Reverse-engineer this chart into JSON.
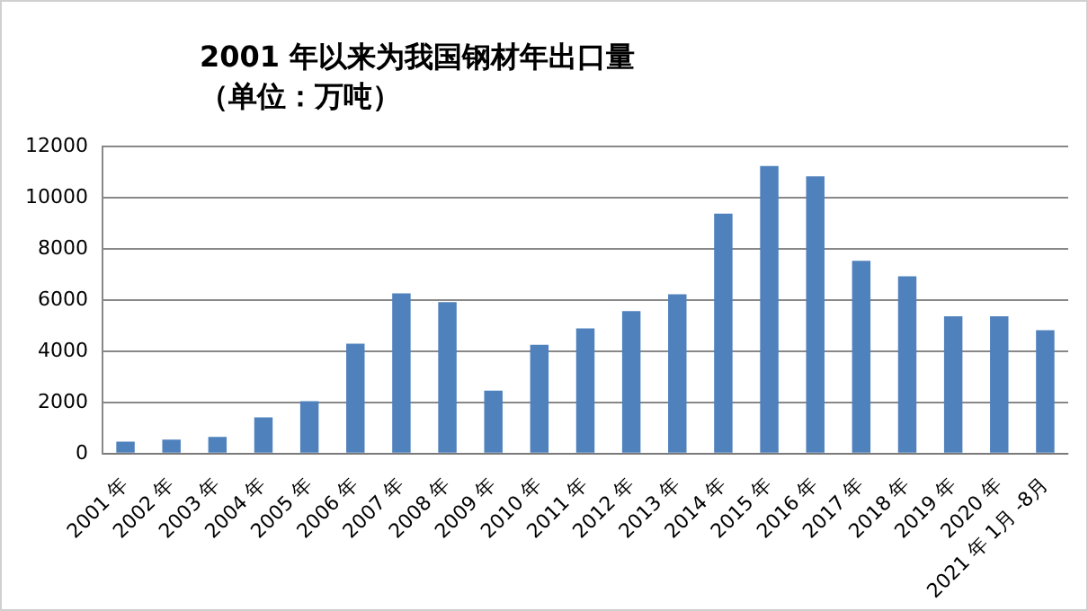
{
  "chart_data": {
    "type": "bar",
    "title": "2001 年以来为我国钢材年出口量",
    "subtitle": "（单位：万吨）",
    "categories": [
      "2001 年",
      "2002 年",
      "2003 年",
      "2004 年",
      "2005 年",
      "2006 年",
      "2007 年",
      "2008 年",
      "2009 年",
      "2010 年",
      "2011 年",
      "2012 年",
      "2013 年",
      "2014 年",
      "2015 年",
      "2016 年",
      "2017 年",
      "2018 年",
      "2019 年",
      "2020 年",
      "2021 年 1月 -8月"
    ],
    "values": [
      470,
      550,
      650,
      1420,
      2050,
      4300,
      6260,
      5920,
      2460,
      4250,
      4890,
      5570,
      6230,
      9380,
      11240,
      10840,
      7540,
      6930,
      5370,
      5370,
      4820
    ],
    "color": "#4f81bd",
    "ylim": [
      0,
      12000
    ],
    "yticks": [
      0,
      2000,
      4000,
      6000,
      8000,
      10000,
      12000
    ],
    "grid": "y"
  }
}
